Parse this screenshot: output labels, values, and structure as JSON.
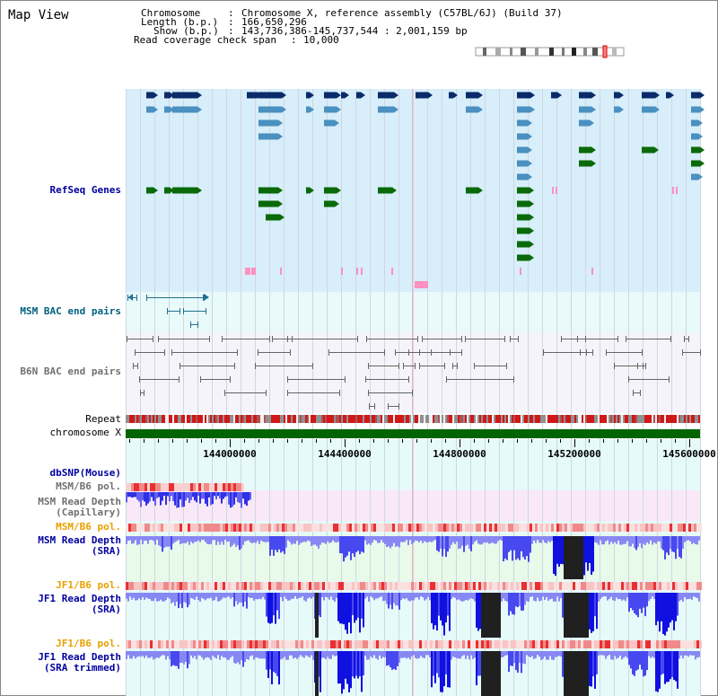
{
  "page": {
    "title": "Map View"
  },
  "info": {
    "chromosome_key": "Chromosome",
    "chromosome_val": "Chromosome X, reference assembly (C57BL/6J) (Build 37)",
    "length_key": "Length (b.p.)",
    "length_val": "166,650,296",
    "show_key": "Show (b.p.)",
    "show_val": "143,736,386-145,737,544 : 2,001,159 bp",
    "read_span_key": "Read coverage check span",
    "read_span_val": "10,000"
  },
  "tracks": {
    "refseq": "RefSeq Genes",
    "msm_bac": "MSM BAC end pairs",
    "b6n_bac": "B6N BAC end pairs",
    "repeat": "Repeat",
    "chromosome": "chromosome X",
    "dbsnp": "dbSNP(Mouse)",
    "msm_b6_pol_1": "MSM/B6 pol.",
    "msm_depth_cap_1": "MSM Read Depth",
    "msm_depth_cap_2": "(Capillary)",
    "msm_b6_pol_2": "MSM/B6 pol.",
    "msm_depth_sra_1": "MSM Read Depth",
    "msm_depth_sra_2": "(SRA)",
    "jf1_b6_pol_1": "JF1/B6 pol.",
    "jf1_depth_sra_1": "JF1 Read Depth",
    "jf1_depth_sra_2": "(SRA)",
    "jf1_b6_pol_2": "JF1/B6 pol.",
    "jf1_depth_trim_1": "JF1 Read Depth",
    "jf1_depth_trim_2": "(SRA trimmed)"
  },
  "axis": {
    "ticks": [
      "144000000",
      "144400000",
      "144800000",
      "145200000",
      "145600000"
    ]
  },
  "colors": {
    "gene_dark": "#0a2a6a",
    "gene_mid": "#4a90c0",
    "gene_green": "#0a6a0a",
    "gene_pink": "#ff90c0",
    "refseq_bg": "#d8eefa",
    "msm_bg": "#e8fafa",
    "b6n_bg": "#f4f4fa",
    "depth_bg": "#e8faea",
    "depth_bar": "#4040e0",
    "depth_dark": "#202020"
  }
}
